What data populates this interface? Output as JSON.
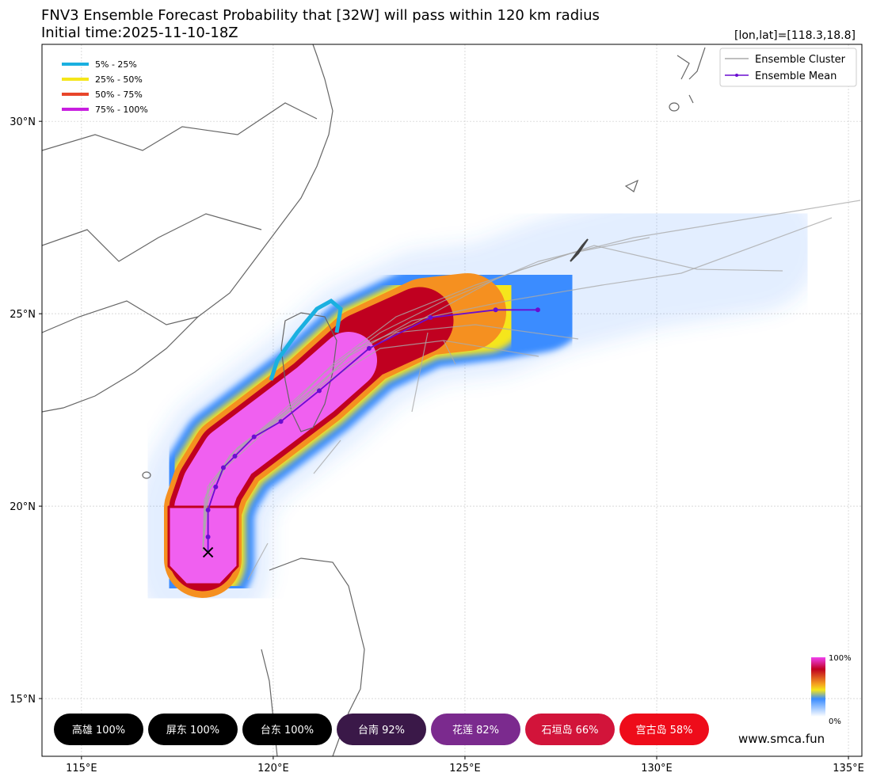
{
  "chart_data": {
    "type": "map",
    "title": "FNV3 Ensemble Forecast Probability that [32W] will pass within 120 km radius",
    "subtitle": "Initial time:2025-11-10-18Z",
    "position_label": "[lon,lat]=[118.3,18.8]",
    "xlim": [
      113.97,
      135.35
    ],
    "ylim": [
      13.5,
      32.0
    ],
    "xticks": [
      {
        "value": 115,
        "label": "115°E"
      },
      {
        "value": 120,
        "label": "120°E"
      },
      {
        "value": 125,
        "label": "125°E"
      },
      {
        "value": 130,
        "label": "130°E"
      },
      {
        "value": 135,
        "label": "135°E"
      }
    ],
    "yticks": [
      {
        "value": 15,
        "label": "15°N"
      },
      {
        "value": 20,
        "label": "20°N"
      },
      {
        "value": 25,
        "label": "25°N"
      },
      {
        "value": 30,
        "label": "30°N"
      }
    ],
    "grid": true,
    "probability_legend": [
      {
        "name": "5% - 25%",
        "color": "#1ab0e0"
      },
      {
        "name": "25% - 50%",
        "color": "#f5e61a"
      },
      {
        "name": "50% - 75%",
        "color": "#e8452a"
      },
      {
        "name": "75% - 100%",
        "color": "#c81ee0"
      }
    ],
    "series": [
      {
        "name": "Ensemble Cluster",
        "color": "#aaaaaa"
      },
      {
        "name": "Ensemble Mean",
        "color": "#6a0dd1",
        "x": [
          118.3,
          118.3,
          118.3,
          118.5,
          118.7,
          119.0,
          119.5,
          120.2,
          121.2,
          122.5,
          124.1,
          125.8,
          126.9
        ],
        "values": [
          18.8,
          19.2,
          19.9,
          20.5,
          21.0,
          21.3,
          21.8,
          22.2,
          23.0,
          24.1,
          24.9,
          25.1,
          25.1
        ]
      }
    ],
    "legend_position": "upper right",
    "colorbar_labels": [
      "100%",
      "0%"
    ],
    "locations": [
      {
        "label": "高雄 100%",
        "color": "#000000"
      },
      {
        "label": "屏东 100%",
        "color": "#000000"
      },
      {
        "label": "台东 100%",
        "color": "#000000"
      },
      {
        "label": "台南 92%",
        "color": "#3a1848"
      },
      {
        "label": "花莲 82%",
        "color": "#7b2a8e"
      },
      {
        "label": "石垣岛 66%",
        "color": "#d2143a"
      },
      {
        "label": "宫古岛 58%",
        "color": "#ee0c1a"
      }
    ],
    "watermark": "www.smca.fun"
  }
}
